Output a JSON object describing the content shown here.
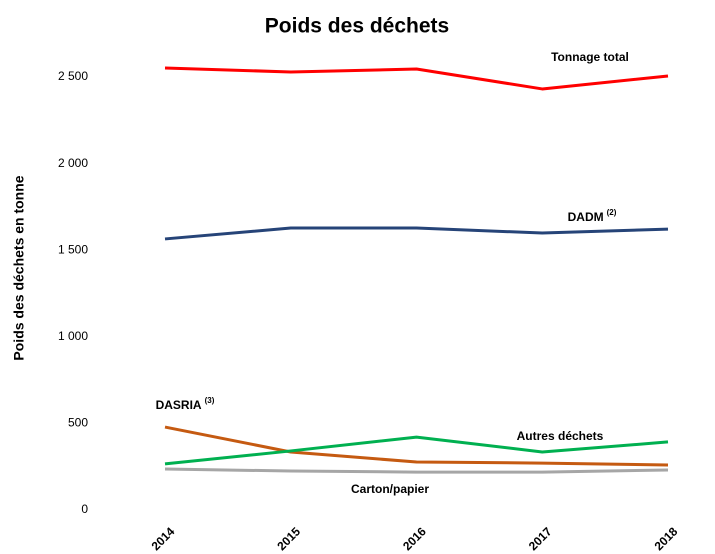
{
  "chart_data": {
    "type": "line",
    "title": "Poids des déchets",
    "y_label": "Poids des déchets en tonne",
    "categories": [
      "2014",
      "2015",
      "2016",
      "2017",
      "2018"
    ],
    "series": [
      {
        "name": "Tonnage total",
        "color": "#ff0000",
        "values": [
          2552,
          2529,
          2546,
          2431,
          2506
        ]
      },
      {
        "name": "DADM",
        "note": "(2)",
        "color": "#264478",
        "values": [
          1565,
          1628,
          1628,
          1599,
          1622
        ]
      },
      {
        "name": "DASRIA",
        "note": "(3)",
        "color": "#c55a11",
        "values": [
          479,
          335,
          277,
          271,
          260
        ]
      },
      {
        "name": "Autres déchets",
        "color": "#00b050",
        "values": [
          266,
          341,
          421,
          335,
          393
        ]
      },
      {
        "name": "Carton/papier",
        "color": "#a6a6a6",
        "values": [
          237,
          225,
          219,
          219,
          231
        ]
      }
    ],
    "ylim": [
      0,
      2500
    ],
    "yticks": [
      0,
      500,
      {
        "value": 1000,
        "label": "1 000"
      },
      {
        "value": 1500,
        "label": "1 500"
      },
      {
        "value": 2000,
        "label": "2 000"
      },
      {
        "value": 2500,
        "label": "2 500"
      }
    ],
    "grid": false
  }
}
